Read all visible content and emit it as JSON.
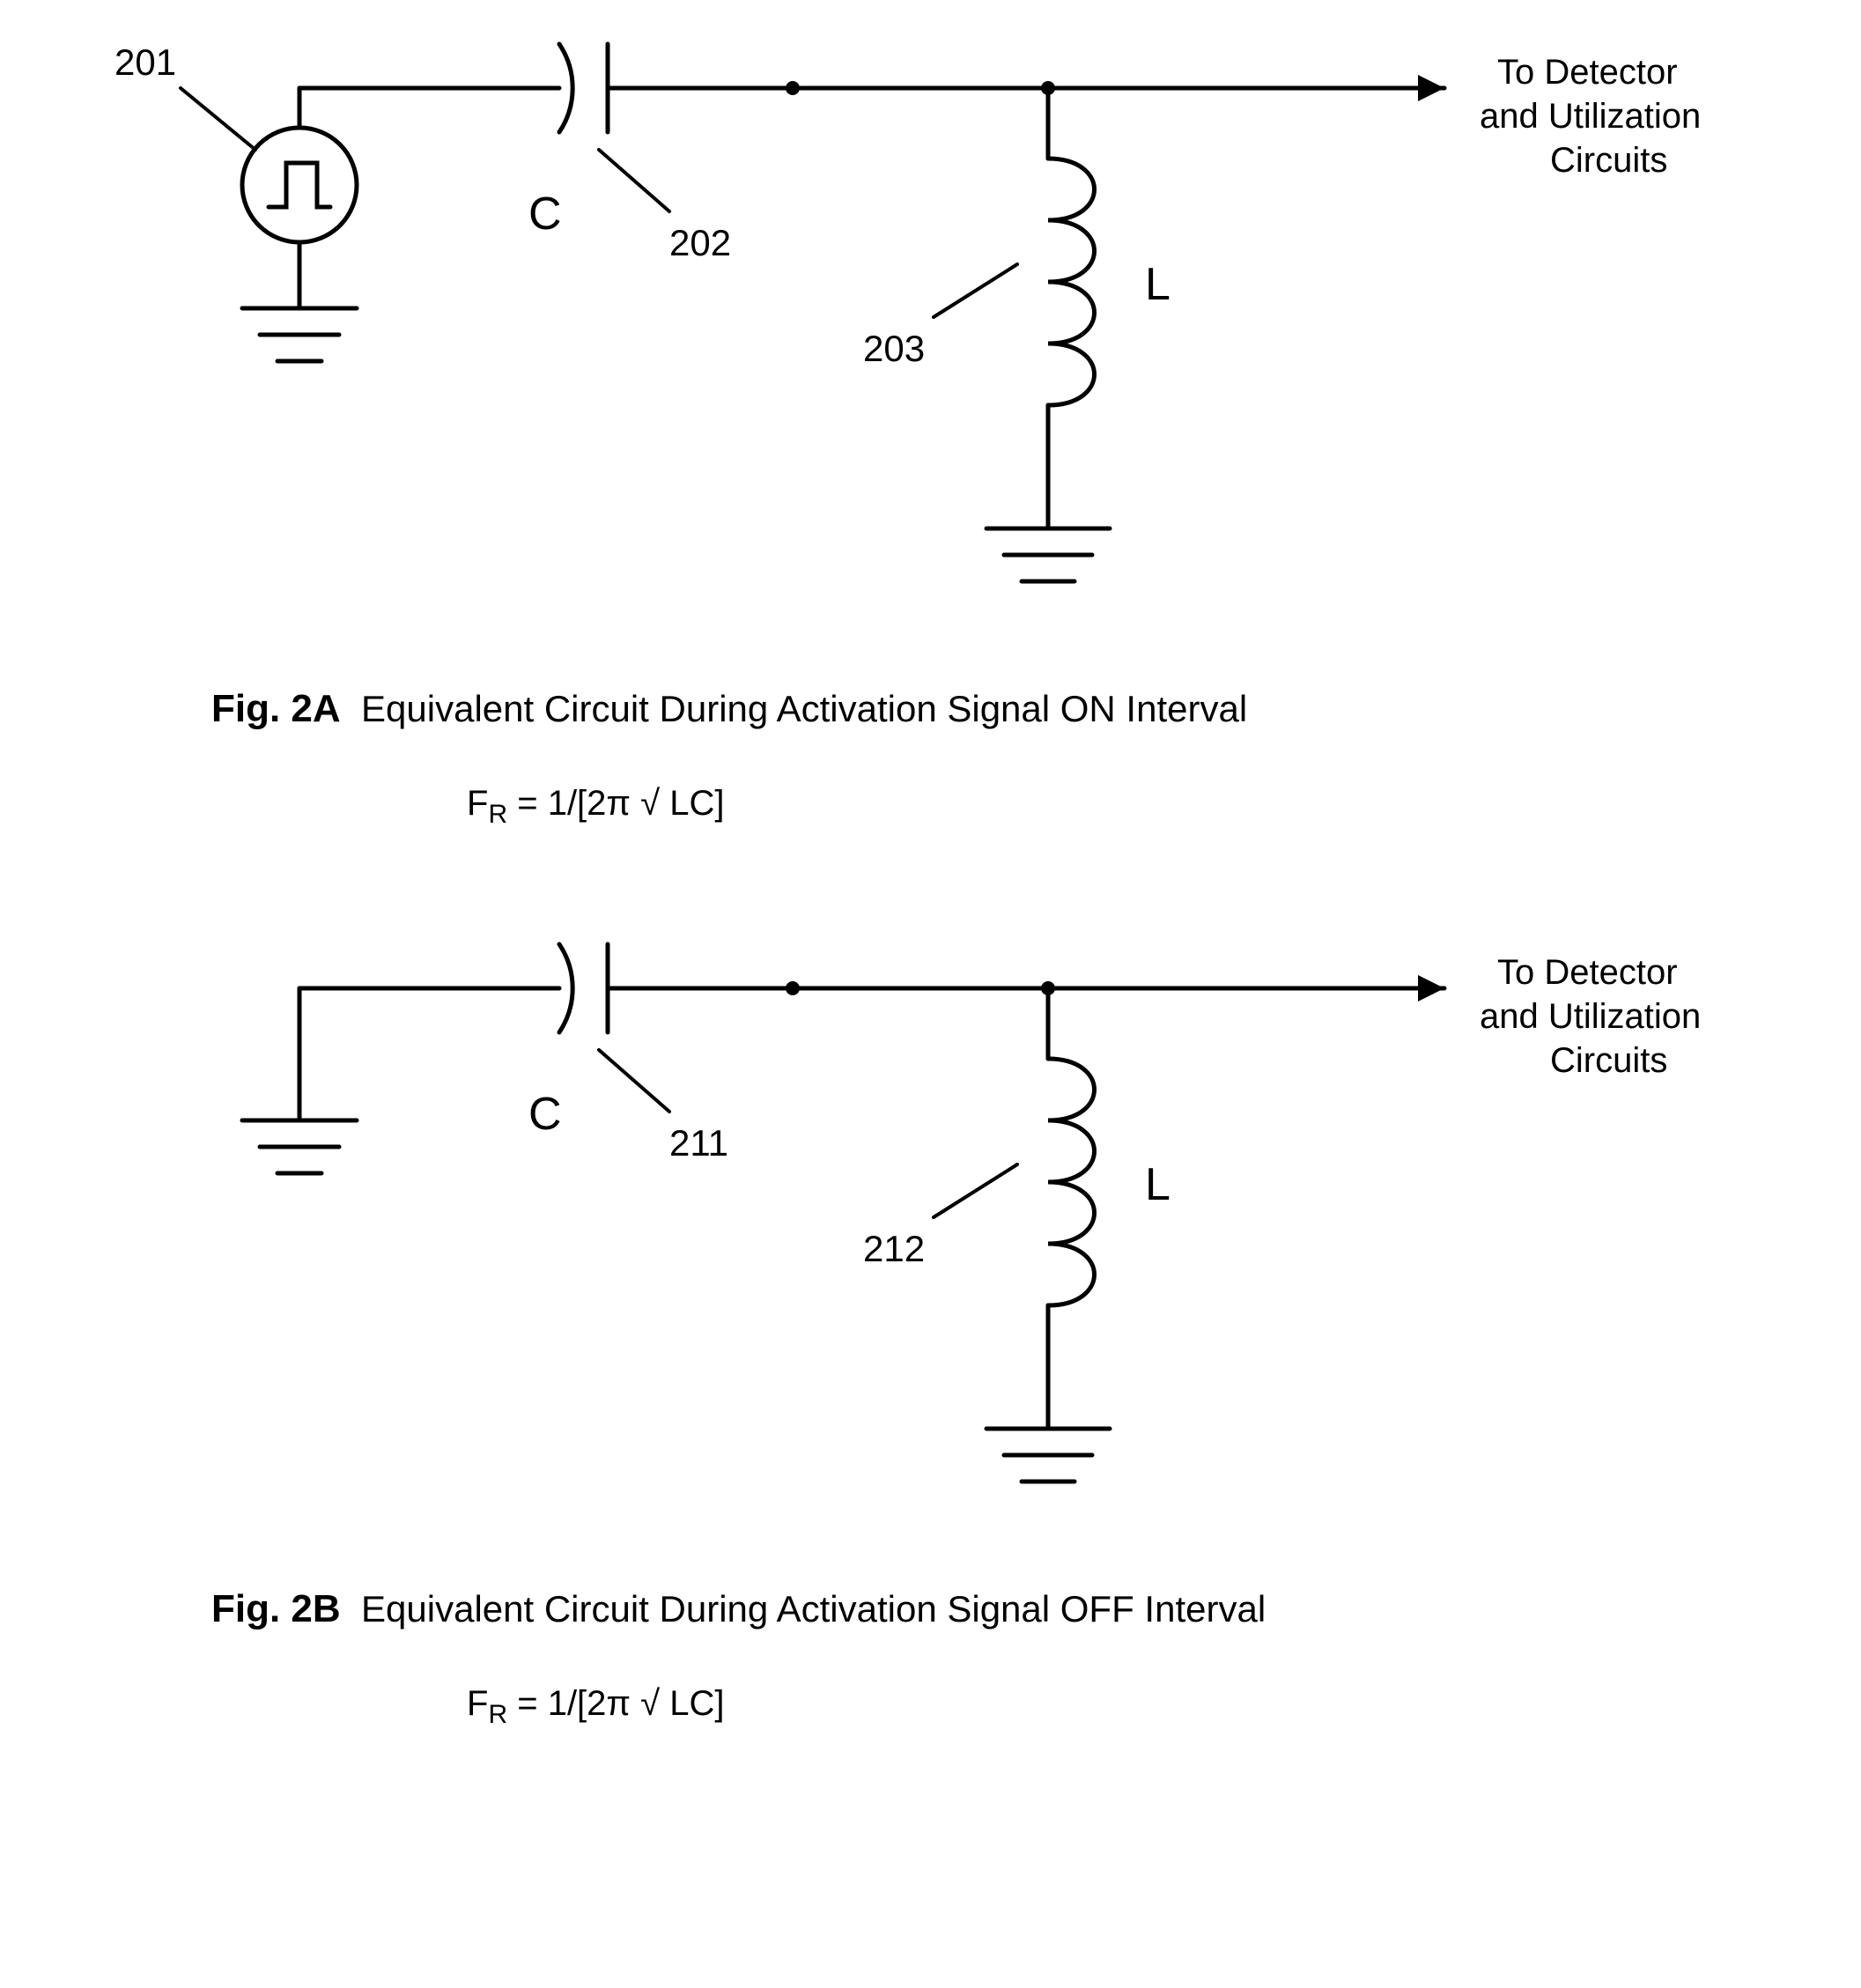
{
  "stroke_color": "#000000",
  "stroke_width": 5,
  "figA": {
    "ref_source": "201",
    "ref_cap": "202",
    "ref_ind": "203",
    "cap_label": "C",
    "ind_label": "L",
    "out_line1": "To Detector",
    "out_line2": "and Utilization",
    "out_line3": "Circuits",
    "caption_prefix": "Fig. 2A",
    "caption_text": "Equivalent Circuit During Activation Signal ON Interval",
    "formula": "F<sub>R</sub> = 1/[2π √ LC]"
  },
  "figB": {
    "ref_cap": "211",
    "ref_ind": "212",
    "cap_label": "C",
    "ind_label": "L",
    "out_line1": "To Detector",
    "out_line2": "and Utilization",
    "out_line3": "Circuits",
    "caption_prefix": "Fig. 2B",
    "caption_text": "Equivalent Circuit During Activation Signal OFF Interval",
    "formula": "F<sub>R</sub> = 1/[2π √ LC]"
  }
}
